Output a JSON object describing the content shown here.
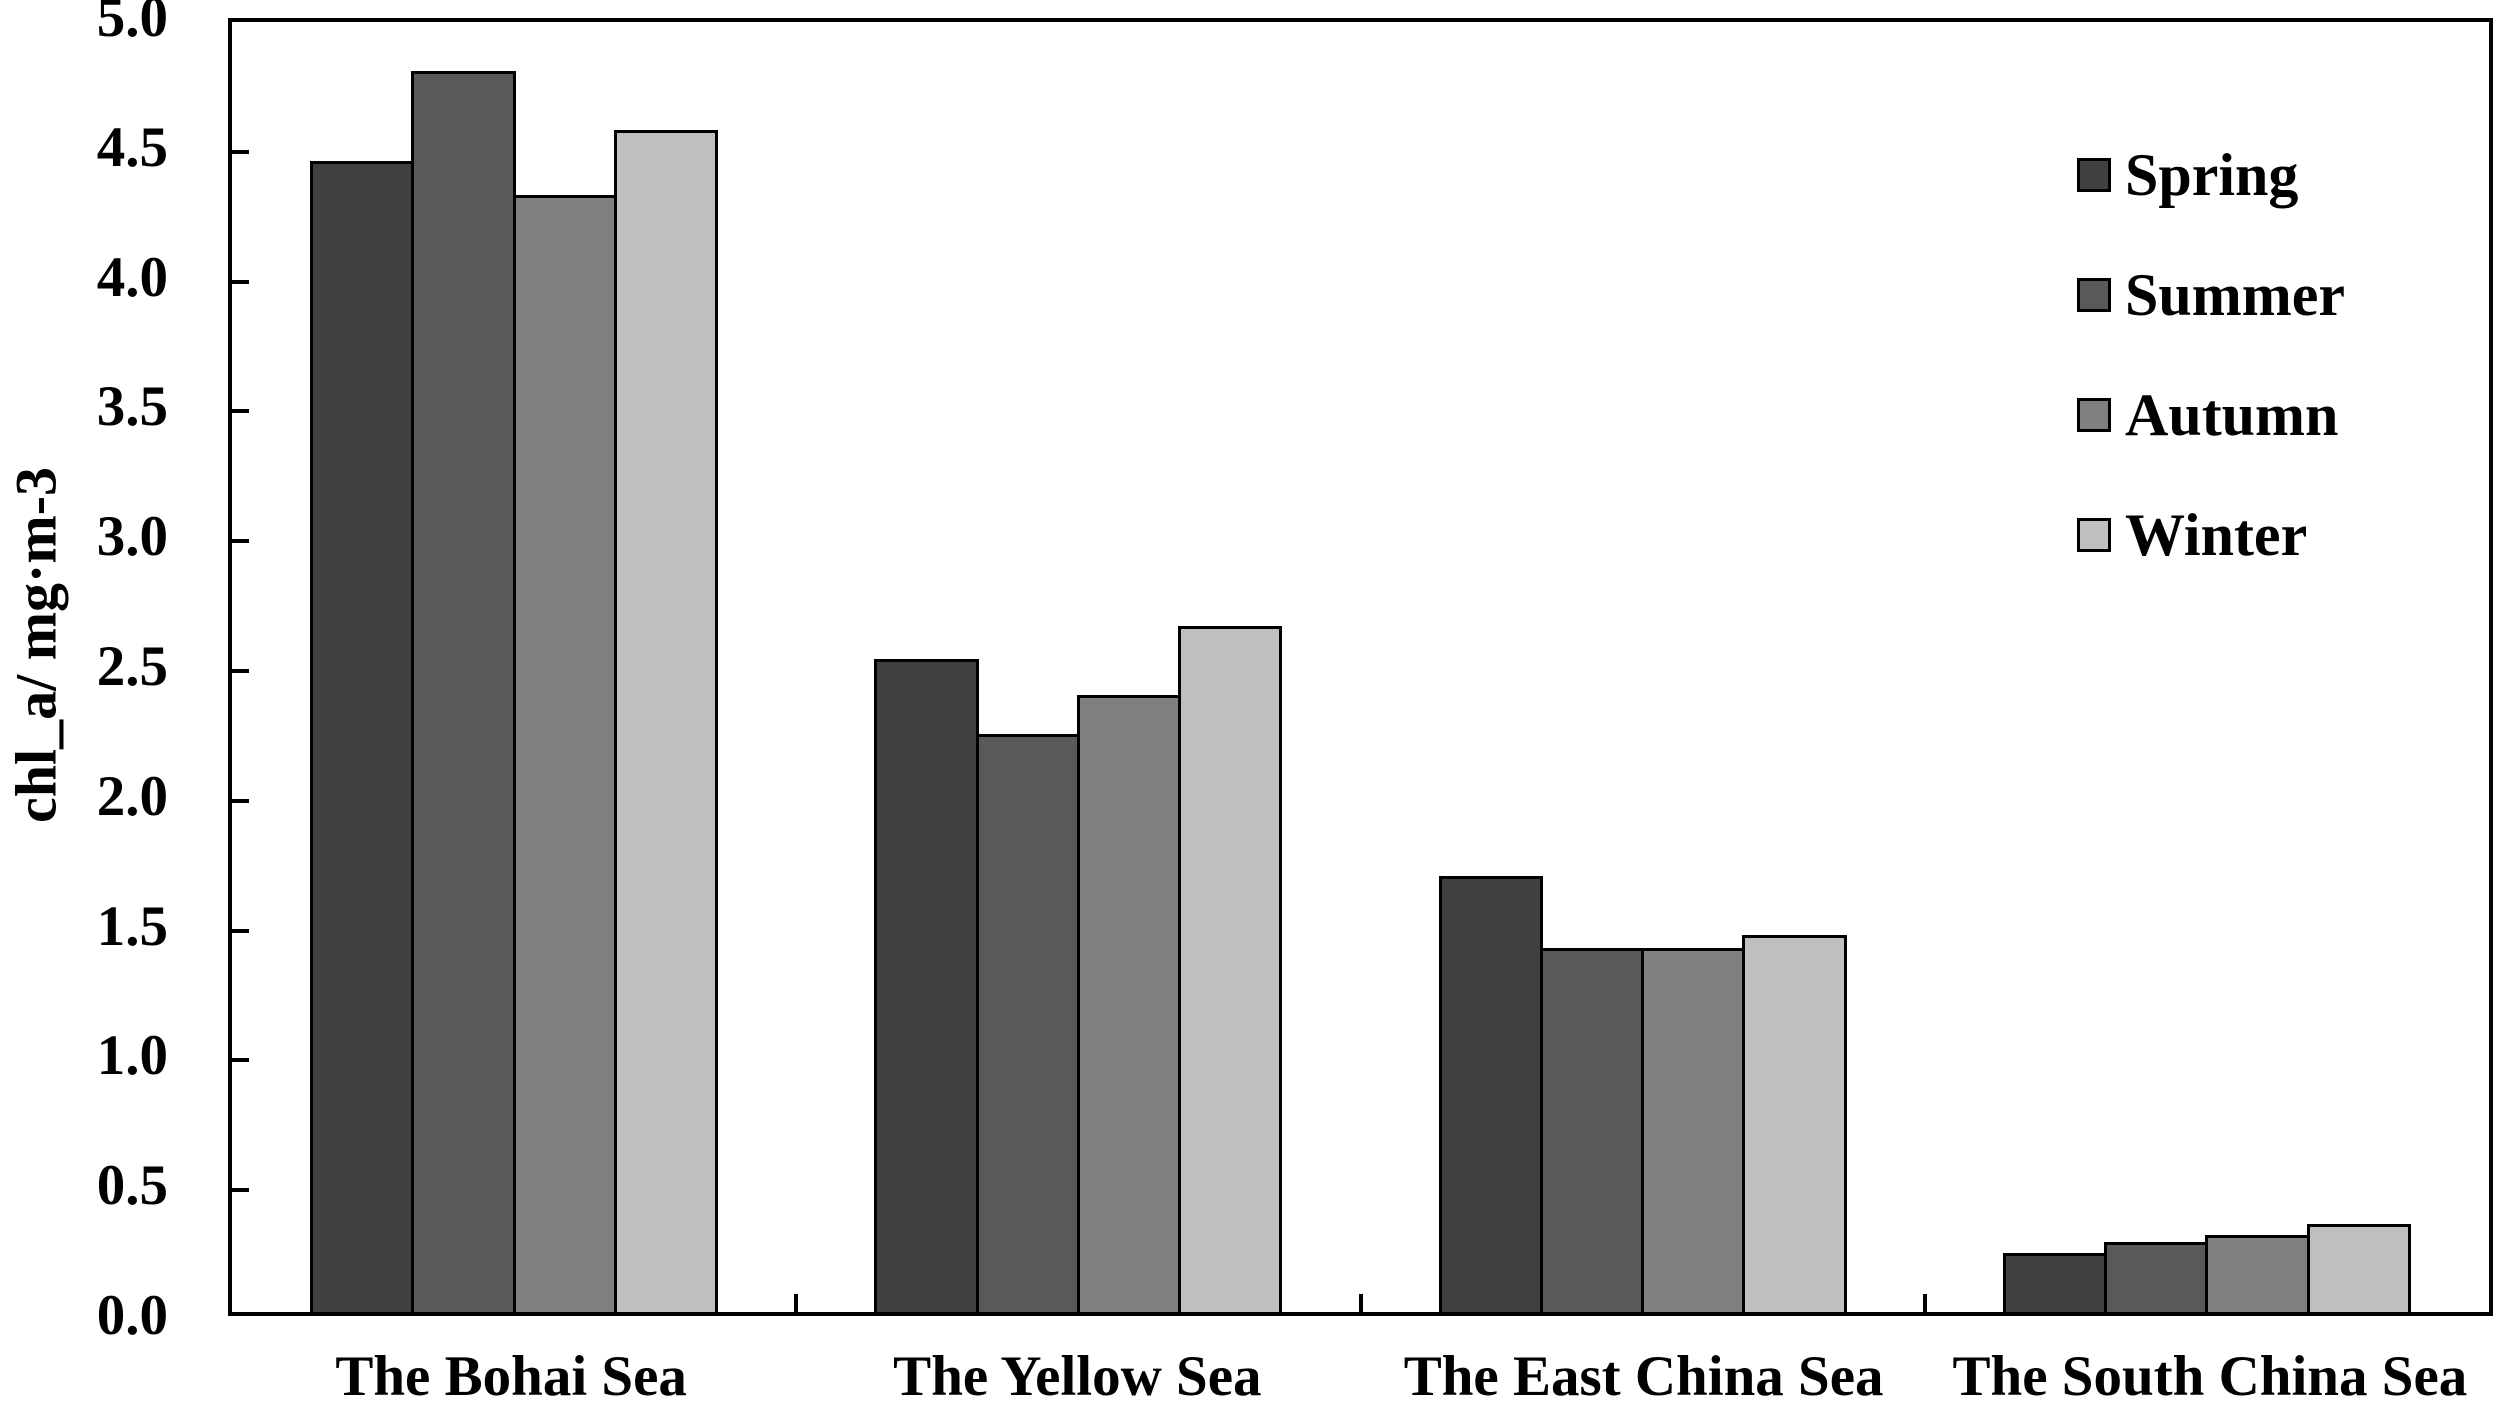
{
  "y_axis": {
    "title": "chl_a/ mg·m-3",
    "tick_labels": [
      "5.0",
      "4.5",
      "4.0",
      "3.5",
      "3.0",
      "2.5",
      "2.0",
      "1.5",
      "1.0",
      "0.5",
      "0.0"
    ]
  },
  "x_axis": {
    "categories": [
      "The Bohai Sea",
      "The Yellow Sea",
      "The East China Sea",
      "The South China Sea"
    ]
  },
  "legend": {
    "items": [
      "Spring",
      "Summer",
      "Autumn",
      "Winter"
    ]
  },
  "colors": {
    "spring": "#404040",
    "summer": "#595959",
    "autumn": "#808080",
    "winter": "#bfbfbf",
    "axis": "#000000",
    "background": "#ffffff"
  },
  "chart_data": {
    "type": "bar",
    "title": "",
    "xlabel": "",
    "ylabel": "chl_a/ mg·m-3",
    "ylim": [
      0.0,
      5.0
    ],
    "ytick_step": 0.5,
    "grid": false,
    "legend_position": "upper-right",
    "categories": [
      "The Bohai Sea",
      "The Yellow Sea",
      "The East China Sea",
      "The South China Sea"
    ],
    "series": [
      {
        "name": "Spring",
        "color": "#404040",
        "values": [
          4.46,
          2.53,
          1.69,
          0.23
        ]
      },
      {
        "name": "Summer",
        "color": "#595959",
        "values": [
          4.81,
          2.24,
          1.41,
          0.27
        ]
      },
      {
        "name": "Autumn",
        "color": "#808080",
        "values": [
          4.33,
          2.39,
          1.41,
          0.3
        ]
      },
      {
        "name": "Winter",
        "color": "#bfbfbf",
        "values": [
          4.58,
          2.66,
          1.46,
          0.34
        ]
      }
    ]
  }
}
